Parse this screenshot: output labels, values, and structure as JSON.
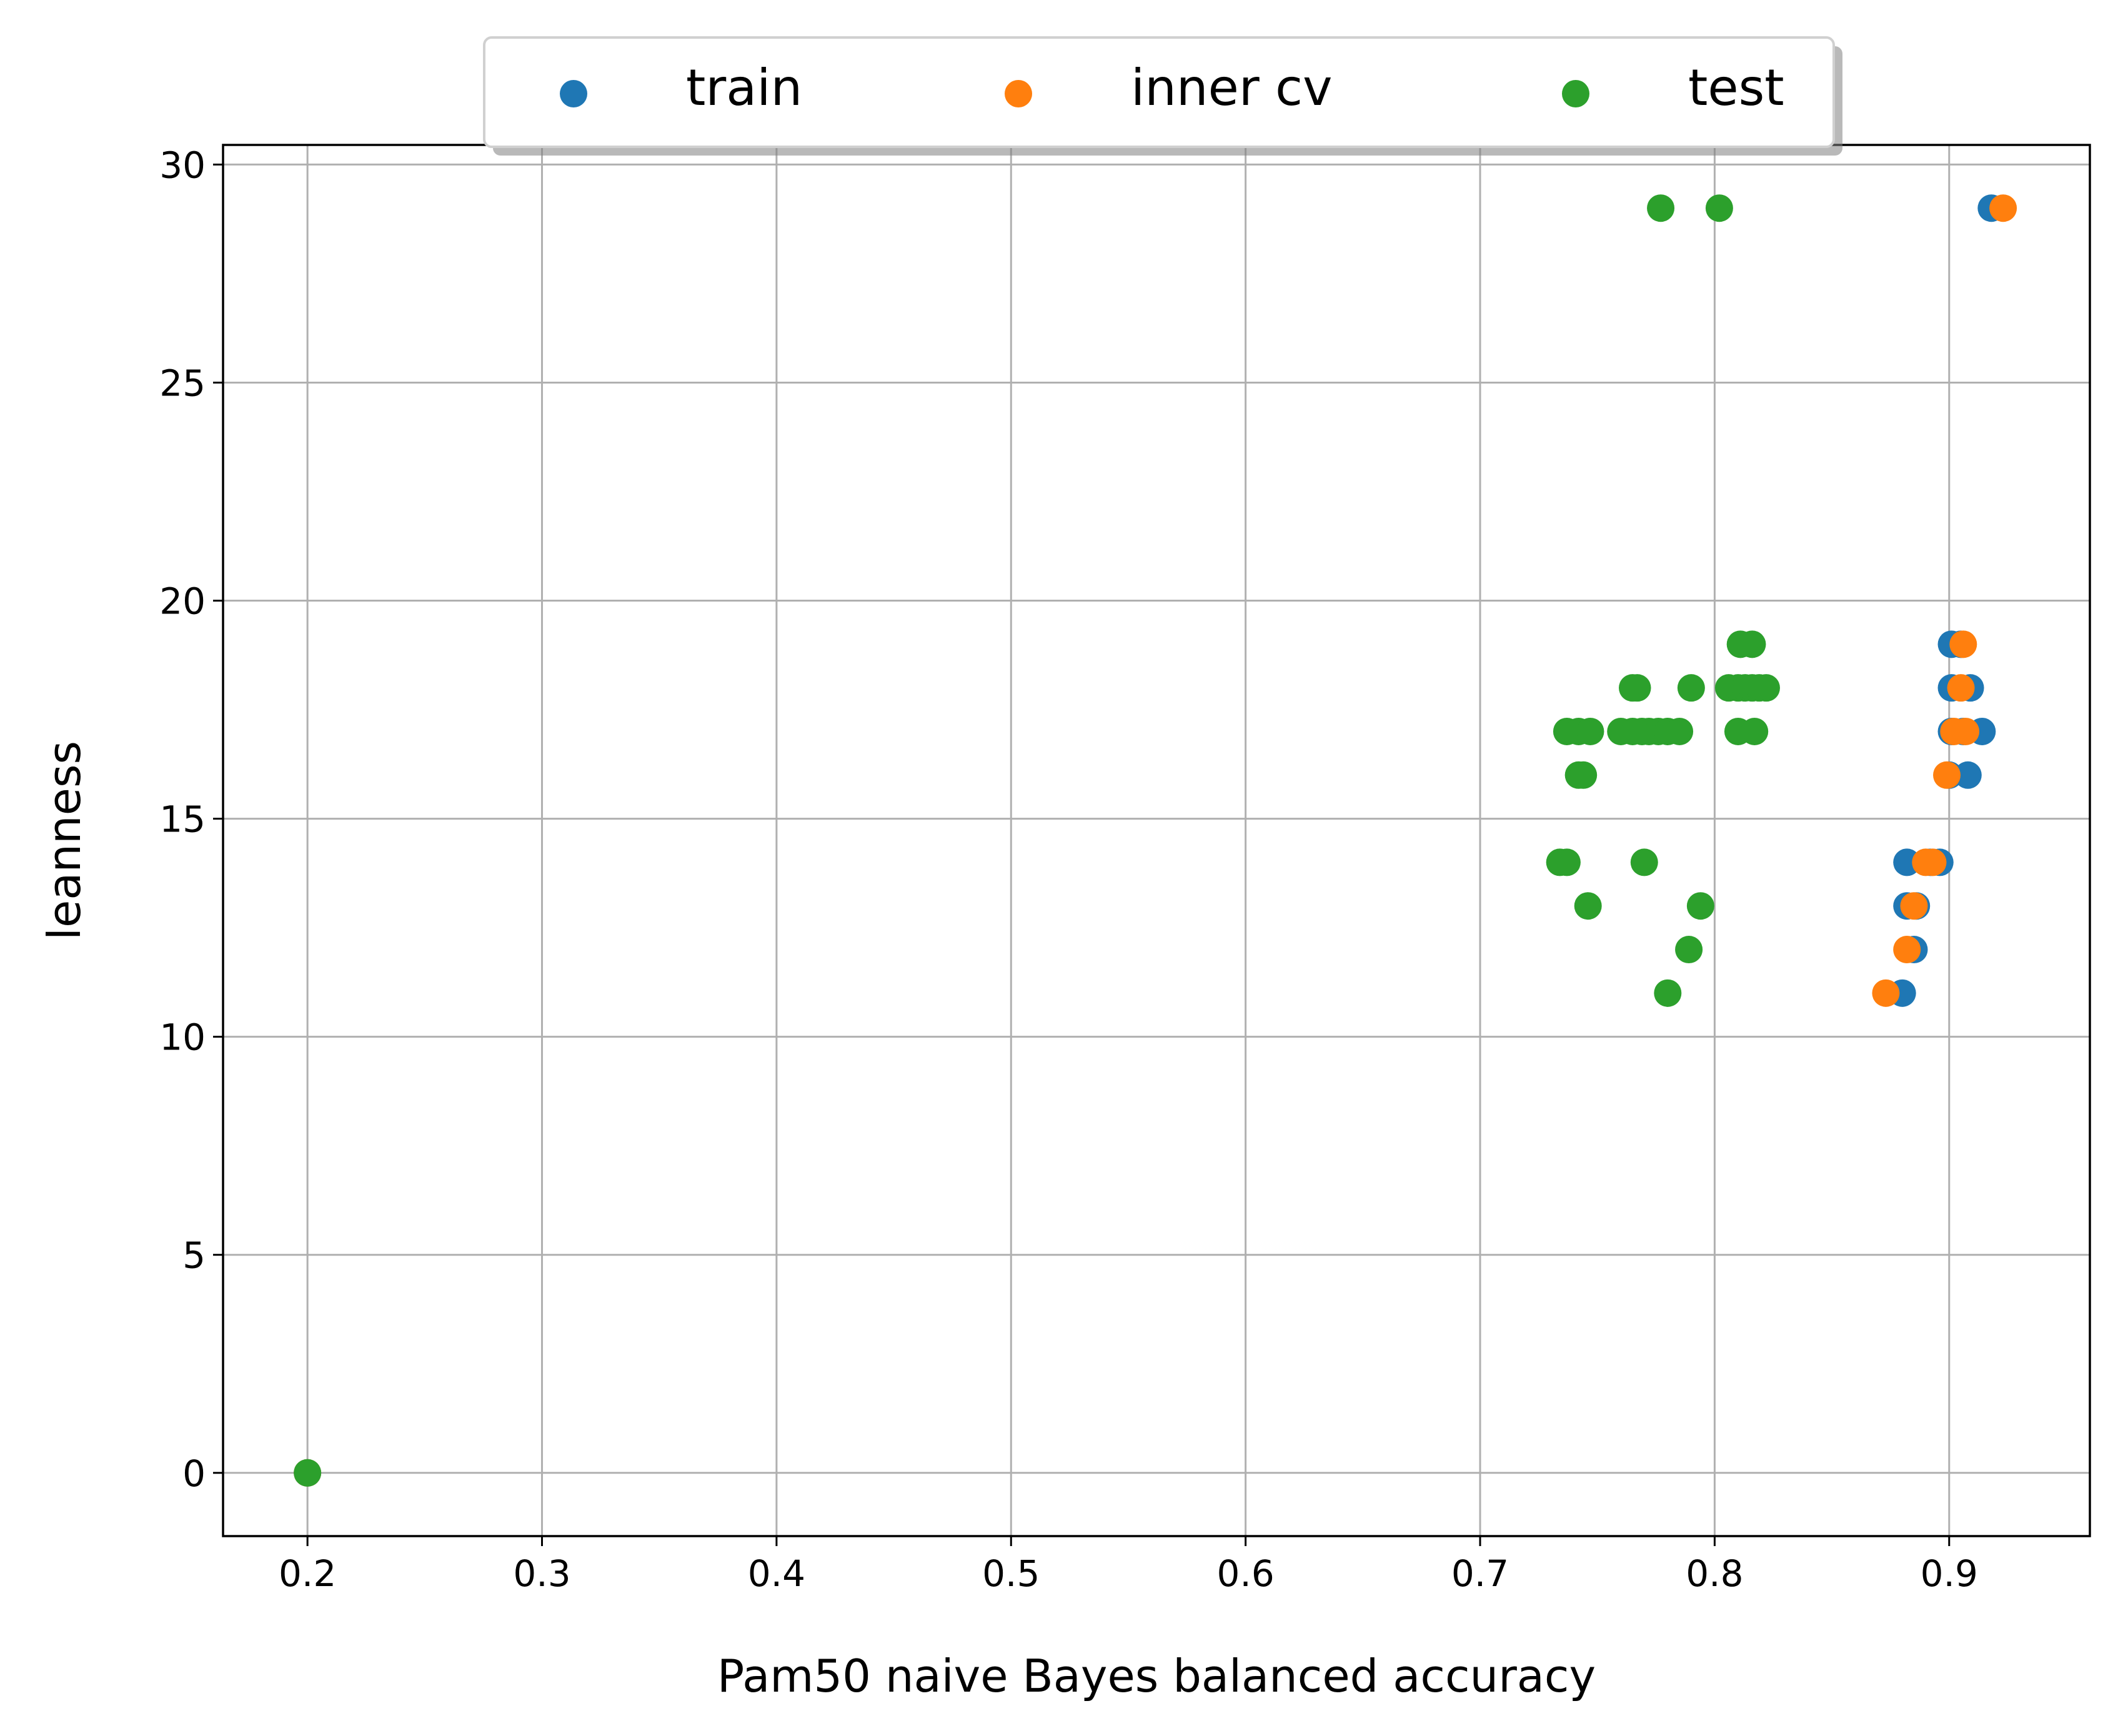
{
  "chart_data": {
    "type": "scatter",
    "title": "",
    "xlabel": "Pam50 naive Bayes balanced accuracy",
    "ylabel": "leanness",
    "xlim": [
      0.164,
      0.96
    ],
    "ylim": [
      -1.45,
      30.45
    ],
    "x_ticks": [
      0.2,
      0.3,
      0.4,
      0.5,
      0.6,
      0.7,
      0.8,
      0.9
    ],
    "y_ticks": [
      0,
      5,
      10,
      15,
      20,
      25,
      30
    ],
    "x_tick_labels": [
      "0.2",
      "0.3",
      "0.4",
      "0.5",
      "0.6",
      "0.7",
      "0.8",
      "0.9"
    ],
    "y_tick_labels": [
      "0",
      "5",
      "10",
      "15",
      "20",
      "25",
      "30"
    ],
    "grid": true,
    "legend": {
      "placement": "top-center",
      "columns": 3,
      "shadow": true
    },
    "series": [
      {
        "name": "train",
        "color": "#1f77b4",
        "points": [
          [
            0.2,
            0
          ],
          [
            0.88,
            11
          ],
          [
            0.885,
            12
          ],
          [
            0.886,
            13
          ],
          [
            0.882,
            13
          ],
          [
            0.882,
            14
          ],
          [
            0.896,
            14
          ],
          [
            0.892,
            14
          ],
          [
            0.908,
            16
          ],
          [
            0.9,
            16
          ],
          [
            0.906,
            17
          ],
          [
            0.914,
            17
          ],
          [
            0.901,
            17
          ],
          [
            0.901,
            18
          ],
          [
            0.909,
            18
          ],
          [
            0.901,
            19
          ],
          [
            0.905,
            19
          ],
          [
            0.918,
            29
          ]
        ]
      },
      {
        "name": "inner cv",
        "color": "#ff7f0e",
        "points": [
          [
            0.2,
            0
          ],
          [
            0.873,
            11
          ],
          [
            0.882,
            12
          ],
          [
            0.885,
            13
          ],
          [
            0.89,
            14
          ],
          [
            0.893,
            14
          ],
          [
            0.899,
            16
          ],
          [
            0.902,
            17
          ],
          [
            0.907,
            17
          ],
          [
            0.905,
            18
          ],
          [
            0.906,
            19
          ],
          [
            0.923,
            29
          ]
        ]
      },
      {
        "name": "test",
        "color": "#2ca02c",
        "points": [
          [
            0.2,
            0
          ],
          [
            0.78,
            11
          ],
          [
            0.789,
            12
          ],
          [
            0.794,
            13
          ],
          [
            0.746,
            13
          ],
          [
            0.734,
            14
          ],
          [
            0.737,
            14
          ],
          [
            0.77,
            14
          ],
          [
            0.742,
            16
          ],
          [
            0.744,
            16
          ],
          [
            0.737,
            17
          ],
          [
            0.742,
            17
          ],
          [
            0.747,
            17
          ],
          [
            0.76,
            17
          ],
          [
            0.765,
            17
          ],
          [
            0.769,
            17
          ],
          [
            0.772,
            17
          ],
          [
            0.776,
            17
          ],
          [
            0.78,
            17
          ],
          [
            0.785,
            17
          ],
          [
            0.81,
            17
          ],
          [
            0.817,
            17
          ],
          [
            0.765,
            18
          ],
          [
            0.767,
            18
          ],
          [
            0.79,
            18
          ],
          [
            0.806,
            18
          ],
          [
            0.81,
            18
          ],
          [
            0.813,
            18
          ],
          [
            0.816,
            18
          ],
          [
            0.819,
            18
          ],
          [
            0.822,
            18
          ],
          [
            0.811,
            19
          ],
          [
            0.816,
            19
          ],
          [
            0.777,
            29
          ],
          [
            0.802,
            29
          ]
        ]
      }
    ]
  }
}
